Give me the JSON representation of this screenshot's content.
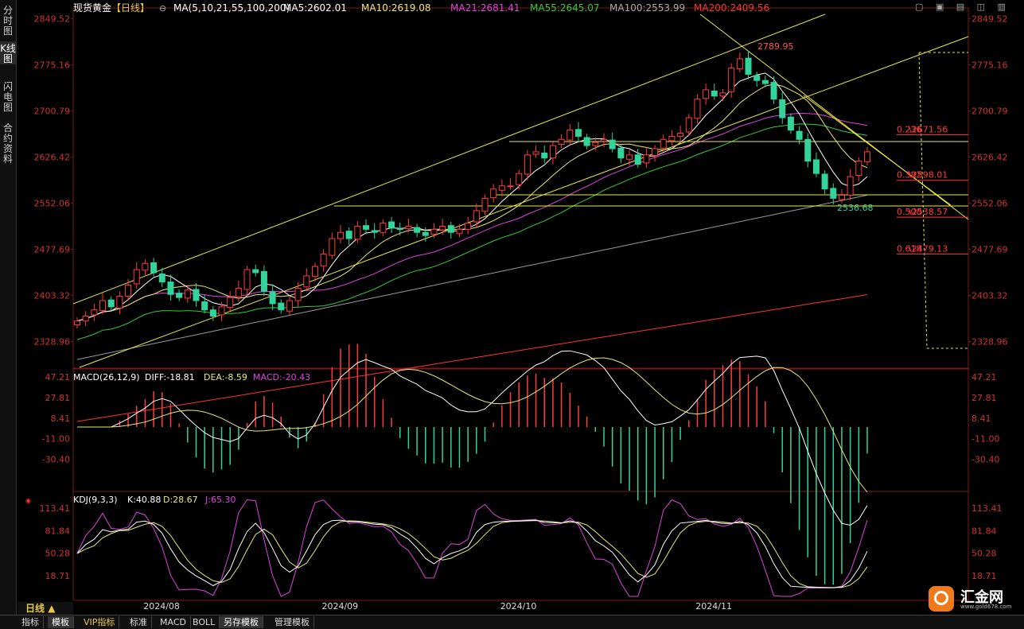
{
  "sidebar": {
    "tabs": [
      "分时图",
      "K线图",
      "闪电图",
      "合约资料"
    ],
    "active": 1
  },
  "header": {
    "title": "现货黄金",
    "period_tag": "【日线】",
    "ma_label": "MA(5,10,21,55,100,200)",
    "ma_values": [
      {
        "text": "MA5:2602.01",
        "color": "#ffffff"
      },
      {
        "text": "MA10:2619.08",
        "color": "#e8e87a"
      },
      {
        "text": "MA21:2681.41",
        "color": "#dd44dd"
      },
      {
        "text": "MA55:2645.07",
        "color": "#33cc33"
      },
      {
        "text": "MA100:2553.99",
        "color": "#aaaaaa"
      },
      {
        "text": "MA200:2409.56",
        "color": "#ff3333"
      }
    ]
  },
  "period_label": "日线",
  "bottom_tabs": [
    "指标",
    "模板",
    "VIP指标",
    "标准",
    "MACD",
    "BOLL",
    "另存模板",
    "管理模板"
  ],
  "logo": {
    "text": "汇金网",
    "url": "www.gold678.com"
  },
  "chart_data": [
    {
      "type": "candlestick",
      "name": "main",
      "y_ticks": [
        "2849.52",
        "2775.16",
        "2700.79",
        "2626.42",
        "2552.06",
        "2477.69",
        "2403.32",
        "2328.96"
      ],
      "ylim": [
        2286,
        2867
      ],
      "x_labels": [
        "2024/08",
        "2024/09",
        "2024/10",
        "2024/11"
      ],
      "x_label_index": [
        9,
        30,
        51,
        74
      ],
      "closes": [
        2362,
        2370,
        2380,
        2395,
        2385,
        2402,
        2420,
        2445,
        2455,
        2440,
        2425,
        2405,
        2400,
        2412,
        2395,
        2380,
        2370,
        2385,
        2400,
        2415,
        2445,
        2440,
        2410,
        2390,
        2380,
        2395,
        2415,
        2435,
        2450,
        2470,
        2495,
        2505,
        2495,
        2515,
        2510,
        2505,
        2520,
        2512,
        2510,
        2515,
        2505,
        2500,
        2510,
        2515,
        2505,
        2510,
        2520,
        2540,
        2560,
        2575,
        2580,
        2580,
        2600,
        2630,
        2635,
        2625,
        2645,
        2655,
        2670,
        2660,
        2645,
        2650,
        2655,
        2640,
        2625,
        2630,
        2615,
        2630,
        2640,
        2655,
        2660,
        2665,
        2690,
        2720,
        2735,
        2725,
        2730,
        2770,
        2785,
        2760,
        2750,
        2745,
        2720,
        2690,
        2670,
        2655,
        2620,
        2600,
        2575,
        2560,
        2565,
        2595,
        2620,
        2635
      ],
      "annotations": [
        "2789.95",
        "2536.68"
      ],
      "fib_levels": [
        {
          "label": "0.236",
          "value": "2671.56",
          "y": 2671.56
        },
        {
          "label": "0.382",
          "value": "2598.01",
          "y": 2598.01
        },
        {
          "label": "0.500",
          "value": "2538.57",
          "y": 2538.57
        },
        {
          "label": "0.618",
          "value": "2479.13",
          "y": 2479.13
        }
      ]
    },
    {
      "type": "macd",
      "label": "MACD(26,12,9)",
      "diff": "DIFF:-18.81",
      "dea": "DEA:-8.59",
      "macd": "MACD:-20.43",
      "y_ticks": [
        "47.21",
        "27.81",
        "8.41",
        "-11.00",
        "-30.40"
      ]
    },
    {
      "type": "kdj",
      "label": "KDJ(9,3,3)",
      "k": "K:40.88",
      "d": "D:28.67",
      "j": "J:65.30",
      "y_ticks": [
        "113.41",
        "81.84",
        "50.28",
        "18.71"
      ]
    }
  ]
}
